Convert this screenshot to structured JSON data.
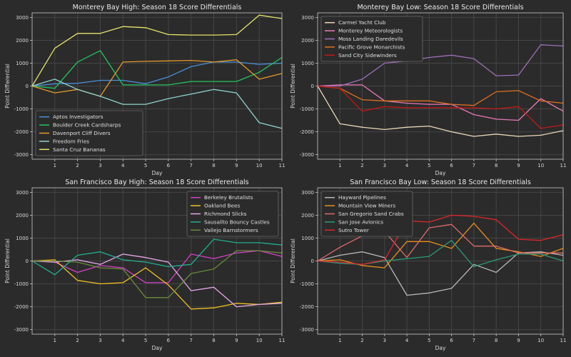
{
  "chart_data": [
    {
      "type": "line",
      "title": "Monterey Bay High: Season 18 Score Differentials",
      "xlabel": "Day",
      "ylabel": "Point Differential",
      "xlim": [
        0,
        11
      ],
      "ylim": [
        -3200,
        3200
      ],
      "xticks": [
        1,
        2,
        3,
        4,
        5,
        6,
        7,
        8,
        9,
        10,
        11
      ],
      "yticks": [
        -3000,
        -2000,
        -1000,
        0,
        1000,
        2000,
        3000
      ],
      "grid": true,
      "legend_position": "bottom-left",
      "x": [
        0,
        1,
        2,
        3,
        4,
        5,
        6,
        7,
        8,
        9,
        10,
        11
      ],
      "series": [
        {
          "name": "Aptos Investigators",
          "color": "#4a90d9",
          "values": [
            0,
            100,
            120,
            250,
            250,
            100,
            400,
            850,
            1050,
            1050,
            950,
            1000
          ]
        },
        {
          "name": "Boulder Creek Cardsharps",
          "color": "#22c55e",
          "values": [
            0,
            -100,
            1050,
            1550,
            50,
            50,
            50,
            200,
            200,
            200,
            600,
            1250
          ]
        },
        {
          "name": "Davenport Cliff Divers",
          "color": "#e39a2b",
          "values": [
            0,
            -300,
            -150,
            -450,
            1050,
            1080,
            1100,
            1120,
            1050,
            1150,
            300,
            550
          ]
        },
        {
          "name": "Freedom Fries",
          "color": "#8fd3cf",
          "values": [
            0,
            300,
            -150,
            -450,
            -800,
            -800,
            -550,
            -350,
            -150,
            -300,
            -1600,
            -1850
          ]
        },
        {
          "name": "Santa Cruz Bananas",
          "color": "#e6e36a",
          "values": [
            0,
            1650,
            2300,
            2300,
            2600,
            2550,
            2250,
            2230,
            2230,
            2250,
            3100,
            2950
          ]
        }
      ]
    },
    {
      "type": "line",
      "title": "Monterey Bay Low: Season 18 Score Differentials",
      "xlabel": "Day",
      "ylabel": "Point Differential",
      "xlim": [
        0,
        11
      ],
      "ylim": [
        -3200,
        3200
      ],
      "xticks": [
        1,
        2,
        3,
        4,
        5,
        6,
        7,
        8,
        9,
        10,
        11
      ],
      "yticks": [
        -3000,
        -2000,
        -1000,
        0,
        1000,
        2000,
        3000
      ],
      "grid": true,
      "legend_position": "top-left",
      "x": [
        0,
        1,
        2,
        3,
        4,
        5,
        6,
        7,
        8,
        9,
        10,
        11
      ],
      "series": [
        {
          "name": "Carmel Yacht Club",
          "color": "#ecd8b8",
          "values": [
            0,
            -1650,
            -1800,
            -1900,
            -1800,
            -1750,
            -2000,
            -2200,
            -2100,
            -2200,
            -2150,
            -1950
          ]
        },
        {
          "name": "Monterey Meteorologists",
          "color": "#e879b8",
          "values": [
            0,
            50,
            50,
            -650,
            -750,
            -800,
            -800,
            -1250,
            -1450,
            -1500,
            -550,
            -1100
          ]
        },
        {
          "name": "Moss Landing Daredevils",
          "color": "#a070b8",
          "values": [
            0,
            0,
            300,
            1000,
            1100,
            1250,
            1350,
            1200,
            450,
            480,
            1800,
            1750
          ]
        },
        {
          "name": "Pacific Grove Monarchists",
          "color": "#e07020",
          "values": [
            0,
            -100,
            -600,
            -650,
            -650,
            -650,
            -800,
            -850,
            -250,
            -200,
            -650,
            -750
          ]
        },
        {
          "name": "Sand City Sidewinders",
          "color": "#c41818",
          "values": [
            0,
            -100,
            -1100,
            -900,
            -950,
            -950,
            -950,
            -950,
            -1000,
            -900,
            -1850,
            -1700
          ]
        }
      ]
    },
    {
      "type": "line",
      "title": "San Francisco Bay High: Season 18 Score Differentials",
      "xlabel": "Day",
      "ylabel": "Point Differential",
      "xlim": [
        0,
        11
      ],
      "ylim": [
        -3200,
        3200
      ],
      "xticks": [
        1,
        2,
        3,
        4,
        5,
        6,
        7,
        8,
        9,
        10,
        11
      ],
      "yticks": [
        -3000,
        -2000,
        -1000,
        0,
        1000,
        2000,
        3000
      ],
      "grid": true,
      "legend_position": "top-right",
      "x": [
        0,
        1,
        2,
        3,
        4,
        5,
        6,
        7,
        8,
        9,
        10,
        11
      ],
      "series": [
        {
          "name": "Berkeley Brutalists",
          "color": "#d63fc8",
          "values": [
            0,
            -50,
            -500,
            -200,
            -300,
            -950,
            -950,
            300,
            100,
            350,
            450,
            200
          ]
        },
        {
          "name": "Oakland Bees",
          "color": "#f0c020",
          "values": [
            0,
            50,
            -850,
            -1000,
            -950,
            -300,
            -1050,
            -2100,
            -2050,
            -1850,
            -1900,
            -1800
          ]
        },
        {
          "name": "Richmond Slicks",
          "color": "#e8a8ec",
          "values": [
            0,
            -50,
            50,
            -150,
            300,
            150,
            -50,
            -1300,
            -1150,
            -2000,
            -1900,
            -1850
          ]
        },
        {
          "name": "Sausalito Bouncy Castles",
          "color": "#20b090",
          "values": [
            0,
            -600,
            250,
            400,
            50,
            -50,
            -250,
            -150,
            950,
            800,
            800,
            700
          ]
        },
        {
          "name": "Vallejo Barnstormers",
          "color": "#6a8a3a",
          "values": [
            0,
            0,
            -50,
            -300,
            -350,
            -1600,
            -1600,
            -550,
            -350,
            450,
            450,
            350
          ]
        }
      ]
    },
    {
      "type": "line",
      "title": "San Francisco Bay Low: Season 18 Score Differentials",
      "xlabel": "Day",
      "ylabel": "Point Differential",
      "xlim": [
        0,
        11
      ],
      "ylim": [
        -3200,
        3200
      ],
      "xticks": [
        1,
        2,
        3,
        4,
        5,
        6,
        7,
        8,
        9,
        10,
        11
      ],
      "yticks": [
        -3000,
        -2000,
        -1000,
        0,
        1000,
        2000,
        3000
      ],
      "grid": true,
      "legend_position": "top-left",
      "x": [
        0,
        1,
        2,
        3,
        4,
        5,
        6,
        7,
        8,
        9,
        10,
        11
      ],
      "series": [
        {
          "name": "Hayward Pipelines",
          "color": "#b8b8b8",
          "values": [
            0,
            250,
            400,
            150,
            -1500,
            -1400,
            -1200,
            -150,
            -500,
            350,
            400,
            250
          ]
        },
        {
          "name": "Mountain View Miners",
          "color": "#e8901a",
          "values": [
            0,
            50,
            -200,
            -300,
            850,
            850,
            550,
            1650,
            550,
            400,
            200,
            550
          ]
        },
        {
          "name": "San Gregorio Sand Crabs",
          "color": "#e06a6a",
          "values": [
            0,
            600,
            1100,
            1300,
            150,
            1450,
            1600,
            650,
            650,
            350,
            350,
            350
          ]
        },
        {
          "name": "San Jose Avionics",
          "color": "#2a9a7a",
          "values": [
            0,
            -100,
            -150,
            0,
            100,
            200,
            900,
            -250,
            50,
            300,
            300,
            0
          ]
        },
        {
          "name": "Sutro Tower",
          "color": "#e0252a",
          "values": [
            0,
            -50,
            -150,
            50,
            1750,
            1700,
            2000,
            1950,
            1800,
            950,
            900,
            1150
          ]
        }
      ]
    }
  ]
}
